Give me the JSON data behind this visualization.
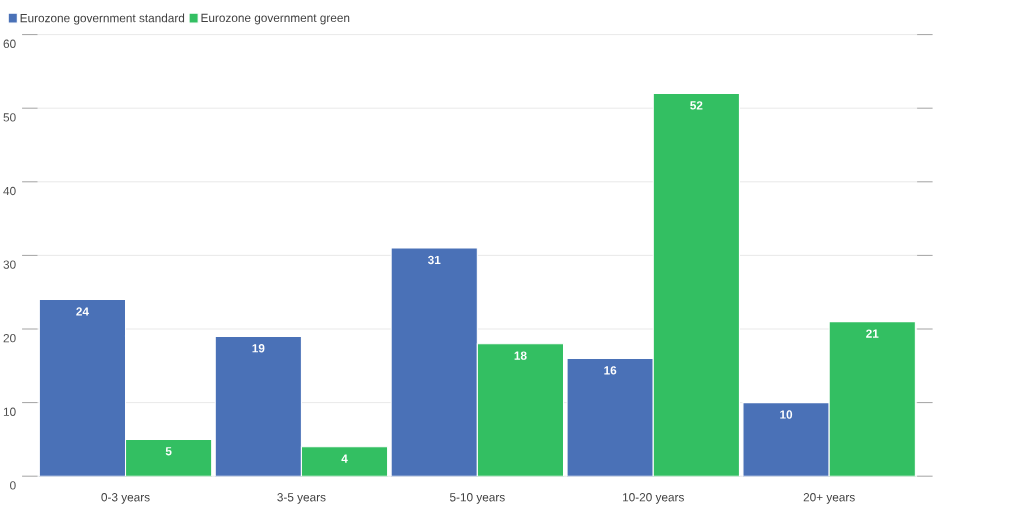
{
  "chart_data": {
    "type": "bar",
    "categories": [
      "0-3 years",
      "3-5 years",
      "5-10 years",
      "10-20 years",
      "20+ years"
    ],
    "series": [
      {
        "name": "Eurozone government standard",
        "color": "#4a71b7",
        "values": [
          24,
          19,
          31,
          16,
          10
        ]
      },
      {
        "name": "Eurozone government green",
        "color": "#33bf62",
        "values": [
          5,
          4,
          18,
          52,
          21
        ]
      }
    ],
    "ylim": [
      0,
      60
    ],
    "yticks": [
      0,
      10,
      20,
      30,
      40,
      50,
      60
    ],
    "grid": "y",
    "legend": "top left",
    "data_labels": true
  }
}
